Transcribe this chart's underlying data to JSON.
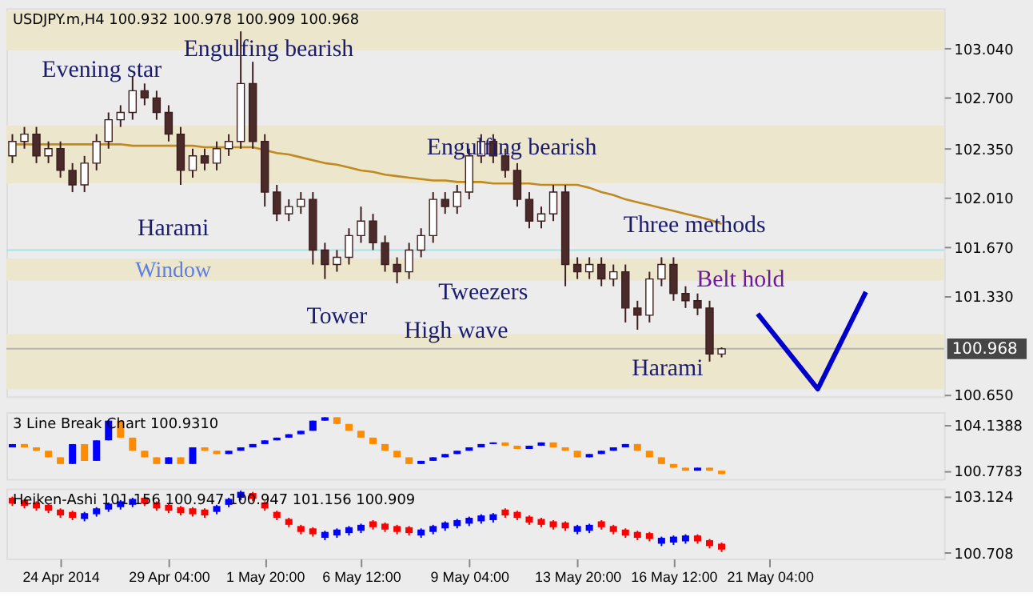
{
  "chart_data": [
    {
      "type": "candlestick",
      "title": "USDJPY.m,H4  100.932 100.978 100.909 100.968",
      "tick_labels": "y",
      "categories": [
        null,
        null,
        null,
        null,
        null,
        null,
        null,
        null,
        null,
        null,
        null,
        null,
        null,
        null,
        null,
        null,
        null,
        null,
        null,
        null,
        null,
        null,
        null,
        null,
        null,
        null,
        null,
        null,
        null,
        null,
        null,
        null,
        null,
        null,
        null,
        null,
        null,
        null,
        null,
        null,
        null,
        null,
        null,
        null,
        null,
        null,
        null,
        null,
        null,
        null,
        null,
        null,
        null,
        null,
        null,
        null,
        null,
        null,
        null,
        null,
        null,
        null,
        null,
        null,
        null,
        null,
        null,
        null,
        null,
        null,
        null,
        null,
        null,
        null,
        null,
        null,
        null,
        null
      ],
      "ohlc": [
        [
          102.3,
          102.45,
          102.25,
          102.4
        ],
        [
          102.4,
          102.5,
          102.35,
          102.45
        ],
        [
          102.45,
          102.5,
          102.25,
          102.3
        ],
        [
          102.3,
          102.4,
          102.25,
          102.35
        ],
        [
          102.35,
          102.4,
          102.15,
          102.2
        ],
        [
          102.2,
          102.25,
          102.05,
          102.1
        ],
        [
          102.1,
          102.3,
          102.05,
          102.25
        ],
        [
          102.25,
          102.45,
          102.2,
          102.4
        ],
        [
          102.4,
          102.6,
          102.35,
          102.55
        ],
        [
          102.55,
          102.65,
          102.5,
          102.6
        ],
        [
          102.6,
          102.85,
          102.55,
          102.75
        ],
        [
          102.75,
          102.8,
          102.65,
          102.7
        ],
        [
          102.7,
          102.75,
          102.55,
          102.6
        ],
        [
          102.6,
          102.65,
          102.4,
          102.45
        ],
        [
          102.45,
          102.5,
          102.1,
          102.2
        ],
        [
          102.2,
          102.35,
          102.15,
          102.3
        ],
        [
          102.3,
          102.35,
          102.2,
          102.25
        ],
        [
          102.25,
          102.4,
          102.2,
          102.35
        ],
        [
          102.35,
          102.45,
          102.3,
          102.4
        ],
        [
          102.4,
          103.16,
          102.35,
          102.8
        ],
        [
          102.8,
          102.95,
          102.35,
          102.4
        ],
        [
          102.4,
          102.45,
          101.95,
          102.05
        ],
        [
          102.05,
          102.1,
          101.85,
          101.9
        ],
        [
          101.9,
          102.0,
          101.85,
          101.95
        ],
        [
          101.95,
          102.05,
          101.9,
          102.0
        ],
        [
          102.0,
          102.05,
          101.55,
          101.65
        ],
        [
          101.65,
          101.7,
          101.45,
          101.55
        ],
        [
          101.55,
          101.65,
          101.5,
          101.6
        ],
        [
          101.6,
          101.8,
          101.55,
          101.75
        ],
        [
          101.75,
          101.95,
          101.7,
          101.85
        ],
        [
          101.85,
          101.9,
          101.65,
          101.7
        ],
        [
          101.7,
          101.75,
          101.5,
          101.55
        ],
        [
          101.55,
          101.6,
          101.42,
          101.5
        ],
        [
          101.5,
          101.7,
          101.45,
          101.65
        ],
        [
          101.65,
          101.8,
          101.6,
          101.75
        ],
        [
          101.75,
          102.05,
          101.7,
          102.0
        ],
        [
          102.0,
          102.05,
          101.9,
          101.95
        ],
        [
          101.95,
          102.1,
          101.9,
          102.05
        ],
        [
          102.05,
          102.35,
          102.0,
          102.3
        ],
        [
          102.3,
          102.45,
          102.25,
          102.4
        ],
        [
          102.4,
          102.45,
          102.25,
          102.3
        ],
        [
          102.3,
          102.35,
          102.15,
          102.2
        ],
        [
          102.2,
          102.25,
          101.95,
          102.0
        ],
        [
          102.0,
          102.05,
          101.8,
          101.85
        ],
        [
          101.85,
          101.95,
          101.8,
          101.9
        ],
        [
          101.9,
          102.1,
          101.85,
          102.05
        ],
        [
          102.05,
          102.1,
          101.4,
          101.55
        ],
        [
          101.55,
          101.6,
          101.45,
          101.5
        ],
        [
          101.5,
          101.6,
          101.45,
          101.55
        ],
        [
          101.55,
          101.6,
          101.4,
          101.45
        ],
        [
          101.45,
          101.55,
          101.4,
          101.5
        ],
        [
          101.5,
          101.55,
          101.15,
          101.25
        ],
        [
          101.25,
          101.3,
          101.1,
          101.2
        ],
        [
          101.2,
          101.5,
          101.15,
          101.45
        ],
        [
          101.45,
          101.6,
          101.4,
          101.55
        ],
        [
          101.55,
          101.6,
          101.3,
          101.35
        ],
        [
          101.35,
          101.4,
          101.25,
          101.3
        ],
        [
          101.3,
          101.35,
          101.2,
          101.25
        ],
        [
          101.25,
          101.3,
          100.88,
          100.932
        ],
        [
          100.932,
          100.978,
          100.909,
          100.968
        ],
        null,
        null,
        null,
        null,
        null,
        null,
        null,
        null,
        null,
        null,
        null,
        null,
        null,
        null,
        null,
        null,
        null,
        null
      ],
      "colors": [
        "#ffffff",
        "#ffffff",
        "#4b2a2a",
        "#ffffff",
        "#4b2a2a",
        "#4b2a2a",
        "#ffffff",
        "#ffffff",
        "#ffffff",
        "#ffffff",
        "#ffffff",
        "#4b2a2a",
        "#4b2a2a",
        "#4b2a2a",
        "#4b2a2a",
        "#ffffff",
        "#4b2a2a",
        "#ffffff",
        "#ffffff",
        "#ffffff",
        "#4b2a2a",
        "#4b2a2a",
        "#4b2a2a",
        "#ffffff",
        "#ffffff",
        "#4b2a2a",
        "#4b2a2a",
        "#ffffff",
        "#ffffff",
        "#ffffff",
        "#4b2a2a",
        "#4b2a2a",
        "#4b2a2a",
        "#ffffff",
        "#ffffff",
        "#ffffff",
        "#4b2a2a",
        "#ffffff",
        "#ffffff",
        "#ffffff",
        "#4b2a2a",
        "#4b2a2a",
        "#4b2a2a",
        "#4b2a2a",
        "#ffffff",
        "#ffffff",
        "#4b2a2a",
        "#4b2a2a",
        "#ffffff",
        "#4b2a2a",
        "#ffffff",
        "#4b2a2a",
        "#4b2a2a",
        "#ffffff",
        "#ffffff",
        "#4b2a2a",
        "#4b2a2a",
        "#4b2a2a",
        "#4b2a2a",
        "#ffffff",
        null,
        null,
        null,
        null,
        null,
        null,
        null,
        null,
        null,
        null,
        null,
        null,
        null,
        null,
        null,
        null,
        null,
        null
      ],
      "series": [
        {
          "type": "line",
          "color": "#c08a20",
          "values": [
            102.38,
            102.38,
            102.38,
            102.38,
            102.38,
            102.38,
            102.38,
            102.38,
            102.38,
            102.38,
            102.37,
            102.37,
            102.37,
            102.37,
            102.37,
            102.37,
            102.36,
            102.36,
            102.36,
            102.36,
            102.36,
            102.34,
            102.32,
            102.31,
            102.29,
            102.27,
            102.25,
            102.24,
            102.22,
            102.2,
            102.19,
            102.17,
            102.16,
            102.15,
            102.14,
            102.13,
            102.13,
            102.12,
            102.12,
            102.12,
            102.11,
            102.11,
            102.11,
            102.11,
            102.1,
            102.1,
            102.1,
            102.1,
            102.08,
            102.05,
            102.03,
            102.0,
            101.98,
            101.96,
            101.94,
            101.92,
            101.9,
            101.88,
            101.86,
            101.83,
            null,
            null,
            null,
            null,
            null,
            null,
            null,
            null,
            null,
            null,
            null,
            null,
            null,
            null,
            null,
            null,
            null,
            null
          ]
        },
        {
          "type": "line",
          "color": "#0000cc",
          "values": [
            null,
            null,
            null,
            null,
            null,
            null,
            null,
            null,
            null,
            null,
            null,
            null,
            null,
            null,
            null,
            null,
            null,
            null,
            null,
            null,
            null,
            null,
            null,
            null,
            null,
            null,
            null,
            null,
            null,
            null,
            null,
            null,
            null,
            null,
            null,
            null,
            null,
            null,
            null,
            null,
            null,
            null,
            null,
            null,
            null,
            null,
            null,
            null,
            null,
            null,
            null,
            null,
            null,
            null,
            null,
            null,
            null,
            null,
            null,
            null,
            null,
            null,
            101.21,
            null,
            null,
            null,
            null,
            100.69,
            null,
            null,
            null,
            101.36,
            null,
            null,
            null,
            null,
            null,
            null
          ]
        }
      ],
      "ylim": [
        100.64,
        103.32
      ],
      "yticks": [
        {
          "value": 103.04,
          "label": "103.040"
        },
        {
          "value": 102.7,
          "label": "102.700"
        },
        {
          "value": 102.35,
          "label": "102.350"
        },
        {
          "value": 102.01,
          "label": "102.010"
        },
        {
          "value": 101.67,
          "label": "101.670"
        },
        {
          "value": 101.33,
          "label": "101.330"
        },
        {
          "value": 100.65,
          "label": "100.650"
        }
      ],
      "bands": [
        {
          "axis": "y",
          "from": 103.03,
          "to": 103.3,
          "color": "#ebe6cc"
        },
        {
          "axis": "y",
          "from": 102.11,
          "to": 102.51,
          "color": "#ebe6cc"
        },
        {
          "axis": "y",
          "from": 101.44,
          "to": 101.59,
          "color": "#ebe6cc"
        },
        {
          "axis": "y",
          "from": 100.69,
          "to": 101.07,
          "color": "#ebe6cc"
        }
      ],
      "ref_lines": [
        {
          "axis": "y",
          "value": 101.65,
          "label": "Window",
          "color": "#a8e4e4"
        },
        {
          "axis": "y",
          "value": 100.968,
          "label": "100.968",
          "color": "#b4b4b4"
        }
      ],
      "annotations": [
        "Evening star",
        "Engulfing bearish",
        "Harami",
        "Engulfing bearish",
        "Three methods",
        "Tower",
        "Tweezers",
        "High wave",
        "Belt hold",
        "Harami"
      ]
    },
    {
      "type": "candlestick",
      "title": "3 Line Break Chart 100.9310",
      "tick_labels": "y",
      "categories": [
        null,
        null,
        null,
        null,
        null,
        null,
        null,
        null,
        null,
        null,
        null,
        null,
        null,
        null,
        null,
        null,
        null,
        null,
        null,
        null,
        null,
        null,
        null,
        null,
        null,
        null,
        null,
        null,
        null,
        null,
        null,
        null,
        null,
        null,
        null,
        null,
        null,
        null,
        null,
        null,
        null,
        null,
        null,
        null,
        null,
        null,
        null,
        null,
        null,
        null,
        null,
        null,
        null,
        null,
        null,
        null,
        null,
        null,
        null,
        null,
        null,
        null,
        null,
        null,
        null,
        null,
        null,
        null,
        null,
        null,
        null,
        null,
        null,
        null,
        null,
        null,
        null,
        null
      ],
      "ohlc": [
        [
          102.49,
          102.73,
          102.49,
          102.73
        ],
        [
          102.73,
          102.73,
          102.49,
          102.49
        ],
        [
          102.49,
          102.49,
          102.24,
          102.24
        ],
        [
          102.24,
          102.24,
          101.76,
          101.76
        ],
        [
          101.76,
          101.76,
          101.27,
          101.27
        ],
        [
          101.27,
          102.73,
          101.27,
          102.73
        ],
        [
          102.73,
          102.73,
          101.5,
          101.5
        ],
        [
          101.5,
          103.0,
          101.5,
          103.0
        ],
        [
          103.0,
          104.44,
          103.0,
          104.44
        ],
        [
          104.44,
          104.44,
          103.2,
          103.2
        ],
        [
          103.2,
          103.2,
          102.24,
          102.24
        ],
        [
          102.24,
          102.24,
          101.76,
          101.76
        ],
        [
          101.76,
          101.76,
          101.27,
          101.27
        ],
        [
          101.27,
          101.76,
          101.27,
          101.76
        ],
        [
          101.76,
          101.76,
          101.27,
          101.27
        ],
        [
          101.27,
          102.49,
          101.27,
          102.49
        ],
        [
          102.49,
          102.49,
          102.24,
          102.24
        ],
        [
          102.24,
          102.24,
          102.0,
          102.0
        ],
        [
          102.0,
          102.24,
          102.0,
          102.24
        ],
        [
          102.24,
          102.49,
          102.24,
          102.49
        ],
        [
          102.49,
          102.73,
          102.49,
          102.73
        ],
        [
          102.73,
          103.0,
          102.73,
          103.0
        ],
        [
          103.0,
          103.2,
          103.0,
          103.2
        ],
        [
          103.2,
          103.45,
          103.2,
          103.45
        ],
        [
          103.45,
          103.7,
          103.45,
          103.7
        ],
        [
          103.7,
          104.44,
          103.7,
          104.44
        ],
        [
          104.44,
          104.69,
          104.44,
          104.69
        ],
        [
          104.69,
          104.69,
          104.2,
          104.2
        ],
        [
          104.2,
          104.2,
          103.7,
          103.7
        ],
        [
          103.7,
          103.7,
          103.2,
          103.2
        ],
        [
          103.2,
          103.2,
          102.73,
          102.73
        ],
        [
          102.73,
          102.73,
          102.24,
          102.24
        ],
        [
          102.24,
          102.24,
          101.76,
          101.76
        ],
        [
          101.76,
          101.76,
          101.27,
          101.27
        ],
        [
          101.27,
          101.5,
          101.27,
          101.5
        ],
        [
          101.5,
          101.76,
          101.5,
          101.76
        ],
        [
          101.76,
          102.0,
          101.76,
          102.0
        ],
        [
          102.0,
          102.24,
          102.0,
          102.24
        ],
        [
          102.24,
          102.49,
          102.24,
          102.49
        ],
        [
          102.49,
          102.73,
          102.49,
          102.73
        ],
        [
          102.73,
          102.85,
          102.73,
          102.85
        ],
        [
          102.85,
          102.85,
          102.61,
          102.61
        ],
        [
          102.61,
          102.61,
          102.37,
          102.37
        ],
        [
          102.37,
          102.61,
          102.37,
          102.61
        ],
        [
          102.61,
          102.85,
          102.61,
          102.85
        ],
        [
          102.85,
          102.85,
          102.49,
          102.49
        ],
        [
          102.49,
          102.49,
          102.24,
          102.24
        ],
        [
          102.24,
          102.24,
          101.76,
          101.76
        ],
        [
          101.76,
          102.0,
          101.76,
          102.0
        ],
        [
          102.0,
          102.24,
          102.0,
          102.24
        ],
        [
          102.24,
          102.49,
          102.24,
          102.49
        ],
        [
          102.49,
          102.73,
          102.49,
          102.73
        ],
        [
          102.73,
          102.73,
          102.24,
          102.24
        ],
        [
          102.24,
          102.24,
          101.76,
          101.76
        ],
        [
          101.76,
          101.76,
          101.27,
          101.27
        ],
        [
          101.27,
          101.27,
          101.0,
          101.0
        ],
        [
          101.0,
          101.0,
          100.78,
          100.78
        ],
        [
          100.78,
          101.0,
          100.78,
          101.0
        ],
        [
          101.0,
          101.0,
          100.78,
          100.78
        ],
        [
          100.78,
          100.78,
          100.53,
          100.53
        ],
        null,
        null,
        null,
        null,
        null,
        null,
        null,
        null,
        null,
        null,
        null,
        null,
        null,
        null,
        null,
        null,
        null,
        null
      ],
      "colors": [
        "#0000ff",
        "#ff8c00",
        "#ff8c00",
        "#ff8c00",
        "#ff8c00",
        "#0000ff",
        "#ff8c00",
        "#0000ff",
        "#0000ff",
        "#ff8c00",
        "#ff8c00",
        "#ff8c00",
        "#ff8c00",
        "#0000ff",
        "#ff8c00",
        "#0000ff",
        "#ff8c00",
        "#ff8c00",
        "#0000ff",
        "#0000ff",
        "#0000ff",
        "#0000ff",
        "#0000ff",
        "#0000ff",
        "#0000ff",
        "#0000ff",
        "#0000ff",
        "#ff8c00",
        "#ff8c00",
        "#ff8c00",
        "#ff8c00",
        "#ff8c00",
        "#ff8c00",
        "#ff8c00",
        "#0000ff",
        "#0000ff",
        "#0000ff",
        "#0000ff",
        "#0000ff",
        "#0000ff",
        "#0000ff",
        "#ff8c00",
        "#ff8c00",
        "#0000ff",
        "#0000ff",
        "#ff8c00",
        "#ff8c00",
        "#ff8c00",
        "#0000ff",
        "#0000ff",
        "#0000ff",
        "#0000ff",
        "#ff8c00",
        "#ff8c00",
        "#ff8c00",
        "#ff8c00",
        "#ff8c00",
        "#0000ff",
        "#ff8c00",
        "#ff8c00",
        null,
        null,
        null,
        null,
        null,
        null,
        null,
        null,
        null,
        null,
        null,
        null,
        null,
        null,
        null,
        null,
        null,
        null
      ],
      "ylim": [
        100.17,
        105.06
      ],
      "yticks": [
        104.1388,
        100.7783
      ]
    },
    {
      "type": "candlestick",
      "title": "Heiken-Ashi 101.156 100.947 100.947 101.156 100.909",
      "categories": [
        null,
        null,
        null,
        null,
        "24 Apr 2014",
        null,
        null,
        null,
        null,
        null,
        null,
        null,
        null,
        "29 Apr 04:00",
        null,
        null,
        null,
        null,
        null,
        null,
        null,
        "1 May 20:00",
        null,
        null,
        null,
        null,
        null,
        null,
        null,
        "6 May 12:00",
        null,
        null,
        null,
        null,
        null,
        null,
        null,
        null,
        "9 May 04:00",
        null,
        null,
        null,
        null,
        null,
        null,
        null,
        null,
        "13 May 20:00",
        null,
        null,
        null,
        null,
        null,
        null,
        null,
        "16 May 12:00",
        null,
        null,
        null,
        null,
        null,
        null,
        null,
        "21 May 04:00",
        null,
        null,
        null,
        null,
        null,
        null,
        null,
        null,
        null,
        null,
        null,
        null,
        null,
        null
      ],
      "ohlc": [
        [
          103.05,
          103.1,
          102.7,
          102.8
        ],
        [
          102.95,
          103.0,
          102.6,
          102.7
        ],
        [
          102.85,
          102.9,
          102.5,
          102.6
        ],
        [
          102.75,
          102.8,
          102.4,
          102.5
        ],
        [
          102.55,
          102.6,
          102.2,
          102.3
        ],
        [
          102.45,
          102.5,
          102.1,
          102.2
        ],
        [
          102.15,
          102.45,
          102.05,
          102.4
        ],
        [
          102.35,
          102.65,
          102.25,
          102.6
        ],
        [
          102.55,
          102.85,
          102.45,
          102.8
        ],
        [
          102.65,
          102.95,
          102.55,
          102.9
        ],
        [
          102.75,
          103.05,
          102.65,
          103.0
        ],
        [
          103.05,
          103.1,
          102.7,
          102.8
        ],
        [
          102.85,
          102.9,
          102.5,
          102.6
        ],
        [
          102.75,
          102.8,
          102.4,
          102.5
        ],
        [
          102.65,
          102.7,
          102.3,
          102.4
        ],
        [
          102.6,
          102.65,
          102.25,
          102.35
        ],
        [
          102.55,
          102.6,
          102.2,
          102.3
        ],
        [
          102.45,
          102.75,
          102.35,
          102.7
        ],
        [
          102.75,
          103.05,
          102.65,
          103.0
        ],
        [
          103.05,
          103.35,
          102.95,
          103.3
        ],
        [
          103.25,
          103.3,
          102.9,
          103.0
        ],
        [
          102.85,
          102.9,
          102.5,
          102.6
        ],
        [
          102.45,
          102.5,
          102.1,
          102.2
        ],
        [
          102.15,
          102.2,
          101.8,
          101.9
        ],
        [
          101.85,
          101.9,
          101.5,
          101.6
        ],
        [
          101.75,
          101.8,
          101.4,
          101.5
        ],
        [
          101.35,
          101.65,
          101.25,
          101.6
        ],
        [
          101.45,
          101.75,
          101.35,
          101.7
        ],
        [
          101.55,
          101.85,
          101.45,
          101.8
        ],
        [
          101.65,
          101.95,
          101.55,
          101.9
        ],
        [
          102.05,
          102.1,
          101.7,
          101.8
        ],
        [
          101.95,
          102.0,
          101.6,
          101.7
        ],
        [
          101.85,
          101.9,
          101.5,
          101.6
        ],
        [
          101.8,
          101.85,
          101.45,
          101.55
        ],
        [
          101.45,
          101.75,
          101.35,
          101.7
        ],
        [
          101.6,
          101.9,
          101.5,
          101.85
        ],
        [
          101.75,
          102.05,
          101.65,
          102.0
        ],
        [
          101.85,
          102.15,
          101.75,
          102.1
        ],
        [
          101.95,
          102.25,
          101.85,
          102.2
        ],
        [
          102.05,
          102.35,
          101.95,
          102.3
        ],
        [
          102.1,
          102.4,
          102.0,
          102.35
        ],
        [
          102.55,
          102.6,
          102.2,
          102.3
        ],
        [
          102.45,
          102.5,
          102.1,
          102.2
        ],
        [
          102.25,
          102.3,
          101.9,
          102.0
        ],
        [
          102.15,
          102.2,
          101.8,
          101.9
        ],
        [
          102.05,
          102.1,
          101.7,
          101.8
        ],
        [
          102.0,
          102.05,
          101.65,
          101.75
        ],
        [
          101.6,
          101.9,
          101.5,
          101.85
        ],
        [
          101.65,
          101.95,
          101.55,
          101.9
        ],
        [
          102.05,
          102.1,
          101.7,
          101.8
        ],
        [
          101.85,
          101.9,
          101.5,
          101.6
        ],
        [
          101.7,
          101.75,
          101.35,
          101.45
        ],
        [
          101.6,
          101.65,
          101.25,
          101.35
        ],
        [
          101.55,
          101.6,
          101.2,
          101.3
        ],
        [
          101.1,
          101.4,
          101.0,
          101.35
        ],
        [
          101.15,
          101.45,
          101.05,
          101.4
        ],
        [
          101.2,
          101.5,
          101.1,
          101.45
        ],
        [
          101.45,
          101.5,
          101.1,
          101.2
        ],
        [
          101.25,
          101.3,
          100.9,
          101.0
        ],
        [
          101.1,
          101.15,
          100.75,
          100.85
        ],
        null,
        null,
        null,
        null,
        null,
        null,
        null,
        null,
        null,
        null,
        null,
        null,
        null,
        null,
        null,
        null,
        null,
        null
      ],
      "colors": [
        "#ff0000",
        "#ff0000",
        "#ff0000",
        "#ff0000",
        "#ff0000",
        "#ff0000",
        "#0000ff",
        "#0000ff",
        "#0000ff",
        "#0000ff",
        "#0000ff",
        "#ff0000",
        "#ff0000",
        "#ff0000",
        "#ff0000",
        "#ff0000",
        "#ff0000",
        "#0000ff",
        "#0000ff",
        "#0000ff",
        "#ff0000",
        "#ff0000",
        "#ff0000",
        "#ff0000",
        "#ff0000",
        "#ff0000",
        "#0000ff",
        "#0000ff",
        "#0000ff",
        "#0000ff",
        "#ff0000",
        "#ff0000",
        "#ff0000",
        "#ff0000",
        "#0000ff",
        "#0000ff",
        "#0000ff",
        "#0000ff",
        "#0000ff",
        "#0000ff",
        "#0000ff",
        "#ff0000",
        "#ff0000",
        "#ff0000",
        "#ff0000",
        "#ff0000",
        "#ff0000",
        "#0000ff",
        "#0000ff",
        "#ff0000",
        "#ff0000",
        "#ff0000",
        "#ff0000",
        "#ff0000",
        "#0000ff",
        "#0000ff",
        "#0000ff",
        "#ff0000",
        "#ff0000",
        "#ff0000",
        null,
        null,
        null,
        null,
        null,
        null,
        null,
        null,
        null,
        null,
        null,
        null,
        null,
        null,
        null,
        null,
        null,
        null
      ],
      "ylim": [
        100.47,
        103.44
      ],
      "yticks": [
        103.124,
        100.708
      ]
    }
  ]
}
